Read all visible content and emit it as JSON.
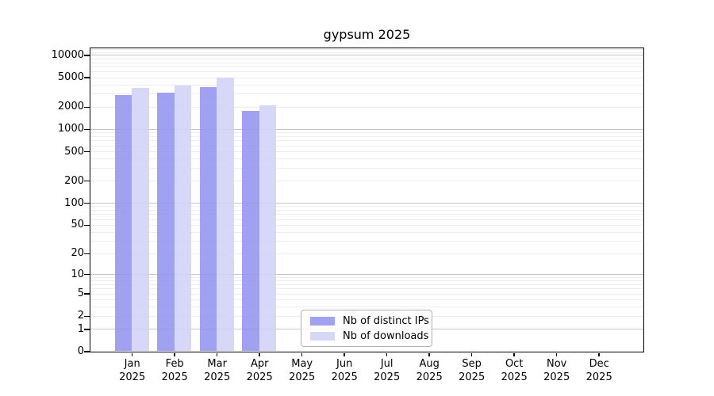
{
  "window": {
    "background": "#ffffff"
  },
  "chart_data": {
    "type": "bar",
    "title": "gypsum 2025",
    "scale": "log10(1+x)",
    "year": "2025",
    "categories": [
      "Jan",
      "Feb",
      "Mar",
      "Apr",
      "May",
      "Jun",
      "Jul",
      "Aug",
      "Sep",
      "Oct",
      "Nov",
      "Dec"
    ],
    "series": [
      {
        "name": "Nb of distinct IPs",
        "color": "#9191f0",
        "values": [
          2850,
          3140,
          3650,
          1740,
          null,
          null,
          null,
          null,
          null,
          null,
          null,
          null
        ]
      },
      {
        "name": "Nb of downloads",
        "color": "#d0d0f6",
        "values": [
          3640,
          3860,
          5000,
          2070,
          null,
          null,
          null,
          null,
          null,
          null,
          null,
          null
        ]
      }
    ],
    "y_ticks": [
      10000,
      5000,
      2000,
      1000,
      500,
      200,
      100,
      50,
      20,
      10,
      5,
      2,
      1,
      0
    ],
    "ylim": [
      0,
      12500
    ],
    "xlabel": "",
    "ylabel": "",
    "grid": "on",
    "legend_position": "bottom-center",
    "colors": {
      "grid_major": "#c6c6c6",
      "grid_minor": "#ededed",
      "axis": "#000000",
      "legend_border": "#b0b0b0"
    }
  }
}
